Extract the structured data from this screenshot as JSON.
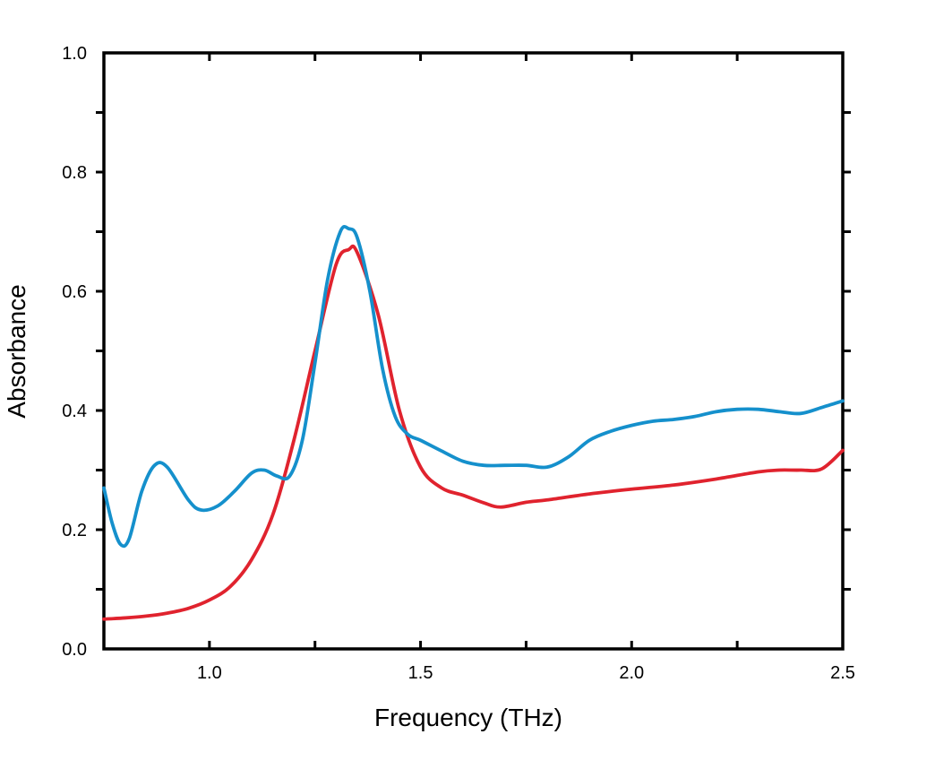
{
  "chart_data": {
    "type": "line",
    "title": "",
    "xlabel": "Frequency (THz)",
    "ylabel": "Absorbance",
    "xlim": [
      0.75,
      2.5
    ],
    "ylim": [
      0.0,
      1.0
    ],
    "x_ticks": [
      1.0,
      1.5,
      2.0,
      2.5
    ],
    "x_tick_labels": [
      "1.0",
      "1.5",
      "2.0",
      "2.5"
    ],
    "x_minor_ticks": [
      1.25,
      1.75,
      2.25
    ],
    "y_ticks": [
      0.0,
      0.2,
      0.4,
      0.6,
      0.8,
      1.0
    ],
    "y_tick_labels": [
      "0.0",
      "0.2",
      "0.4",
      "0.6",
      "0.8",
      "1.0"
    ],
    "y_minor_ticks": [
      0.1,
      0.3,
      0.5,
      0.7,
      0.9
    ],
    "grid": false,
    "legend": "none",
    "series": [
      {
        "color": "#e0232e",
        "points": [
          [
            0.75,
            0.05
          ],
          [
            0.8,
            0.052
          ],
          [
            0.85,
            0.055
          ],
          [
            0.9,
            0.06
          ],
          [
            0.95,
            0.068
          ],
          [
            1.0,
            0.082
          ],
          [
            1.05,
            0.105
          ],
          [
            1.1,
            0.15
          ],
          [
            1.15,
            0.225
          ],
          [
            1.2,
            0.35
          ],
          [
            1.25,
            0.5
          ],
          [
            1.3,
            0.645
          ],
          [
            1.33,
            0.67
          ],
          [
            1.35,
            0.665
          ],
          [
            1.4,
            0.56
          ],
          [
            1.45,
            0.4
          ],
          [
            1.5,
            0.305
          ],
          [
            1.55,
            0.27
          ],
          [
            1.6,
            0.258
          ],
          [
            1.65,
            0.245
          ],
          [
            1.69,
            0.238
          ],
          [
            1.75,
            0.246
          ],
          [
            1.8,
            0.25
          ],
          [
            1.9,
            0.26
          ],
          [
            2.0,
            0.268
          ],
          [
            2.1,
            0.275
          ],
          [
            2.2,
            0.285
          ],
          [
            2.3,
            0.297
          ],
          [
            2.35,
            0.3
          ],
          [
            2.4,
            0.3
          ],
          [
            2.45,
            0.302
          ],
          [
            2.5,
            0.333
          ]
        ]
      },
      {
        "color": "#1590cc",
        "points": [
          [
            0.75,
            0.27
          ],
          [
            0.77,
            0.21
          ],
          [
            0.79,
            0.175
          ],
          [
            0.81,
            0.185
          ],
          [
            0.84,
            0.265
          ],
          [
            0.87,
            0.308
          ],
          [
            0.9,
            0.305
          ],
          [
            0.95,
            0.25
          ],
          [
            0.98,
            0.233
          ],
          [
            1.02,
            0.24
          ],
          [
            1.06,
            0.265
          ],
          [
            1.1,
            0.295
          ],
          [
            1.13,
            0.3
          ],
          [
            1.16,
            0.29
          ],
          [
            1.19,
            0.29
          ],
          [
            1.22,
            0.35
          ],
          [
            1.25,
            0.48
          ],
          [
            1.28,
            0.62
          ],
          [
            1.31,
            0.7
          ],
          [
            1.33,
            0.705
          ],
          [
            1.35,
            0.69
          ],
          [
            1.38,
            0.6
          ],
          [
            1.41,
            0.47
          ],
          [
            1.44,
            0.39
          ],
          [
            1.47,
            0.36
          ],
          [
            1.5,
            0.35
          ],
          [
            1.55,
            0.332
          ],
          [
            1.6,
            0.315
          ],
          [
            1.65,
            0.308
          ],
          [
            1.7,
            0.308
          ],
          [
            1.75,
            0.308
          ],
          [
            1.8,
            0.305
          ],
          [
            1.85,
            0.322
          ],
          [
            1.9,
            0.35
          ],
          [
            1.95,
            0.365
          ],
          [
            2.0,
            0.375
          ],
          [
            2.05,
            0.382
          ],
          [
            2.1,
            0.385
          ],
          [
            2.15,
            0.39
          ],
          [
            2.2,
            0.398
          ],
          [
            2.25,
            0.402
          ],
          [
            2.3,
            0.402
          ],
          [
            2.35,
            0.398
          ],
          [
            2.4,
            0.395
          ],
          [
            2.45,
            0.405
          ],
          [
            2.5,
            0.416
          ]
        ]
      }
    ]
  }
}
